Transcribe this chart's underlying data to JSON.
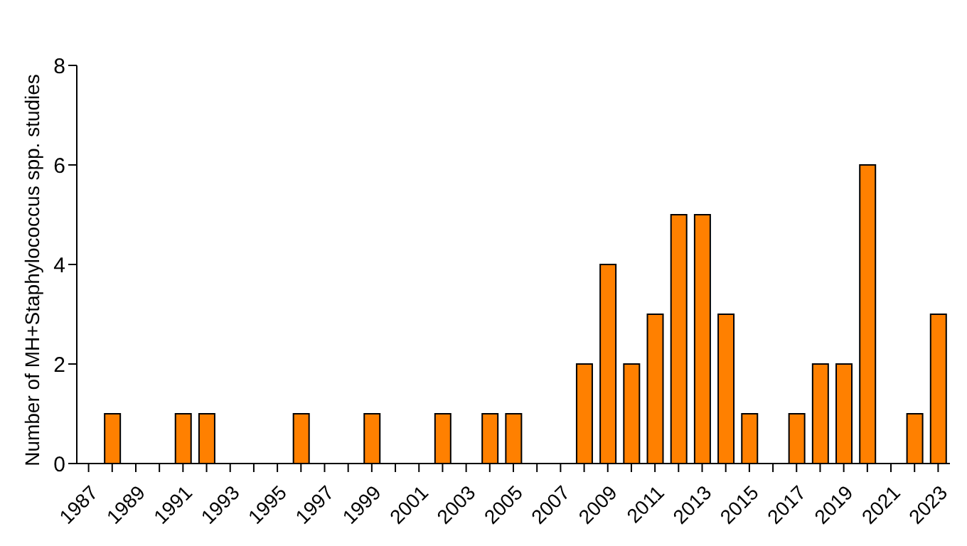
{
  "chart_data": {
    "type": "bar",
    "ylabel": "Number of MH+Staphylococcus spp. studies",
    "categories": [
      "1987",
      null,
      "1989",
      null,
      "1991",
      null,
      "1993",
      null,
      "1995",
      null,
      "1997",
      null,
      "1999",
      null,
      "2001",
      null,
      "2003",
      null,
      "2005",
      null,
      "2007",
      null,
      "2009",
      null,
      "2011",
      null,
      "2013",
      null,
      "2015",
      null,
      "2017",
      null,
      "2019",
      null,
      "2021",
      null,
      "2023"
    ],
    "values": [
      0,
      1,
      0,
      0,
      1,
      1,
      0,
      0,
      0,
      1,
      0,
      0,
      1,
      0,
      0,
      1,
      0,
      1,
      1,
      0,
      0,
      2,
      4,
      2,
      3,
      5,
      5,
      3,
      1,
      0,
      1,
      2,
      2,
      6,
      0,
      1,
      3
    ],
    "color": "#ff8000",
    "ylim": [
      0,
      8
    ],
    "yticks": [
      0,
      2,
      4,
      6,
      8
    ],
    "grid": false,
    "legend": false
  }
}
